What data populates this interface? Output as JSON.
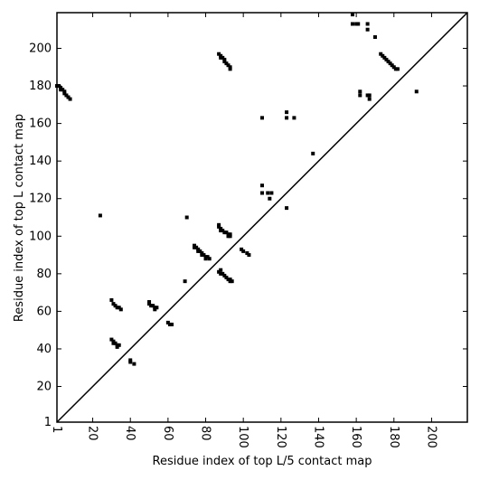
{
  "chart_data": {
    "type": "scatter",
    "x_label": "Residue index of top L/5 contact map",
    "y_label": "Residue index of top L contact map",
    "xlim": [
      1,
      219
    ],
    "ylim": [
      1,
      219
    ],
    "xticks": [
      1,
      20,
      40,
      60,
      80,
      100,
      120,
      140,
      160,
      180,
      200
    ],
    "yticks": [
      1,
      20,
      40,
      60,
      80,
      100,
      120,
      140,
      160,
      180,
      200
    ],
    "color": "#000000",
    "x": [
      1,
      2,
      3,
      3,
      4,
      5,
      5,
      6,
      7,
      8,
      24,
      70,
      69,
      87,
      88,
      88,
      89,
      90,
      90,
      91,
      92,
      93,
      93,
      110,
      123,
      123,
      127,
      110,
      110,
      113,
      115,
      114,
      123,
      137,
      158,
      158,
      160,
      161,
      166,
      166,
      170,
      162,
      162,
      166,
      167,
      167,
      173,
      174,
      175,
      176,
      177,
      178,
      179,
      180,
      181,
      182,
      192,
      30,
      31,
      32,
      33,
      34,
      35,
      30,
      31,
      31,
      32,
      33,
      33,
      34,
      40,
      40,
      42,
      50,
      50,
      51,
      52,
      53,
      53,
      54,
      60,
      61,
      62,
      74,
      74,
      75,
      76,
      76,
      77,
      78,
      78,
      79,
      80,
      80,
      81,
      82,
      87,
      87,
      88,
      88,
      89,
      90,
      91,
      92,
      92,
      93,
      93,
      87,
      88,
      88,
      89,
      90,
      91,
      92,
      93,
      93,
      94,
      99,
      100,
      102,
      103
    ],
    "y": [
      180,
      180,
      179,
      178,
      178,
      177,
      176,
      175,
      174,
      173,
      111,
      110,
      76,
      197,
      196,
      195,
      195,
      194,
      193,
      192,
      191,
      190,
      189,
      163,
      166,
      163,
      163,
      127,
      123,
      123,
      123,
      120,
      115,
      144,
      218,
      213,
      213,
      213,
      213,
      210,
      206,
      177,
      175,
      175,
      175,
      173,
      197,
      196,
      195,
      194,
      193,
      192,
      191,
      190,
      189,
      189,
      177,
      66,
      64,
      63,
      62,
      62,
      61,
      45,
      44,
      43,
      43,
      42,
      41,
      42,
      34,
      33,
      32,
      65,
      64,
      63,
      63,
      62,
      61,
      62,
      54,
      53,
      53,
      95,
      94,
      94,
      93,
      92,
      92,
      91,
      90,
      90,
      89,
      88,
      89,
      88,
      106,
      105,
      104,
      103,
      103,
      102,
      102,
      101,
      100,
      101,
      100,
      81,
      82,
      80,
      80,
      79,
      78,
      77,
      77,
      76,
      76,
      93,
      92,
      91,
      90
    ]
  }
}
